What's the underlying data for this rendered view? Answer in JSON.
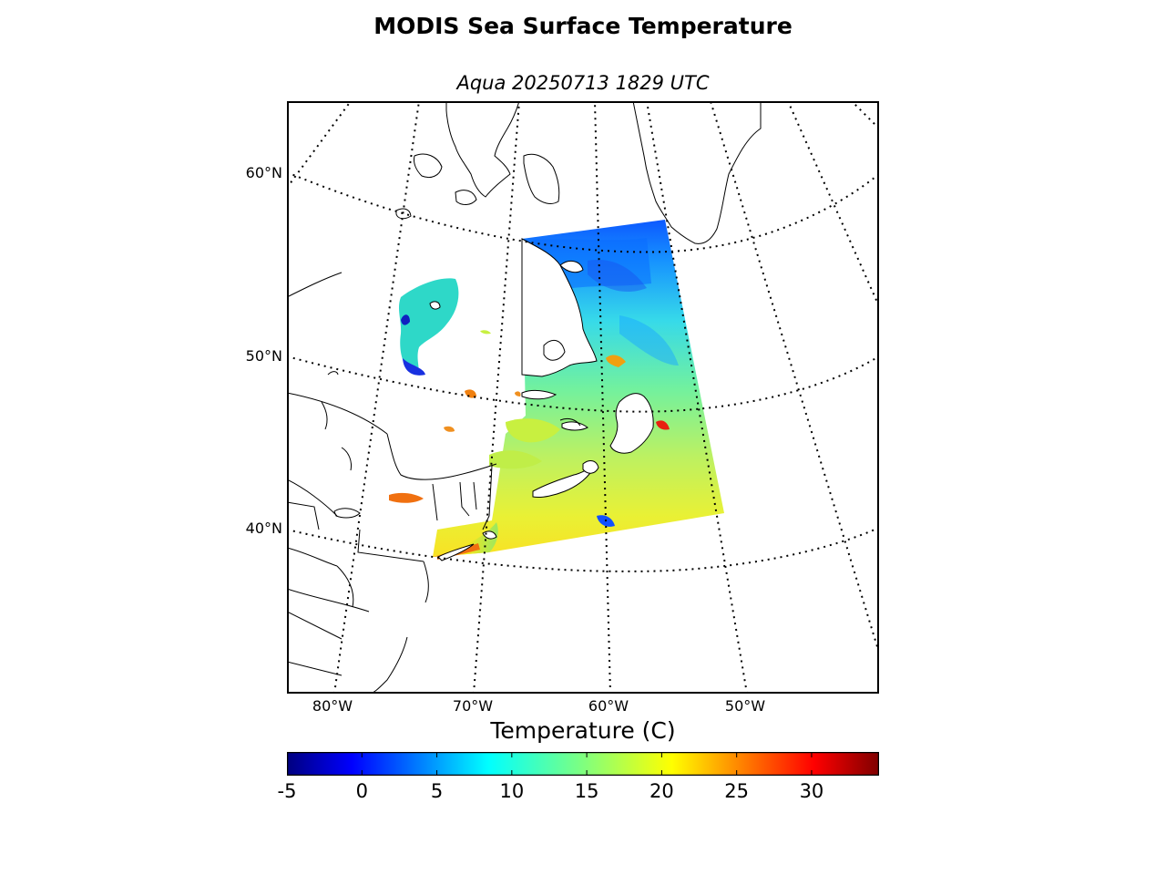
{
  "title": "MODIS Sea Surface Temperature",
  "subtitle": "Aqua 20250713 1829 UTC",
  "map": {
    "projection": "conic",
    "lat_labels": [
      "60°N",
      "50°N",
      "40°N"
    ],
    "lon_labels": [
      "80°W",
      "70°W",
      "60°W",
      "50°W"
    ],
    "graticule_style": "dotted",
    "colors": {
      "coast": "#000000",
      "land": "#ffffff",
      "frame": "#000000"
    }
  },
  "colorbar": {
    "label": "Temperature (C)",
    "min": -5,
    "max": 34.5,
    "colormap": "jet",
    "ticks": [
      "-5",
      "0",
      "5",
      "10",
      "15",
      "20",
      "25",
      "30"
    ]
  }
}
